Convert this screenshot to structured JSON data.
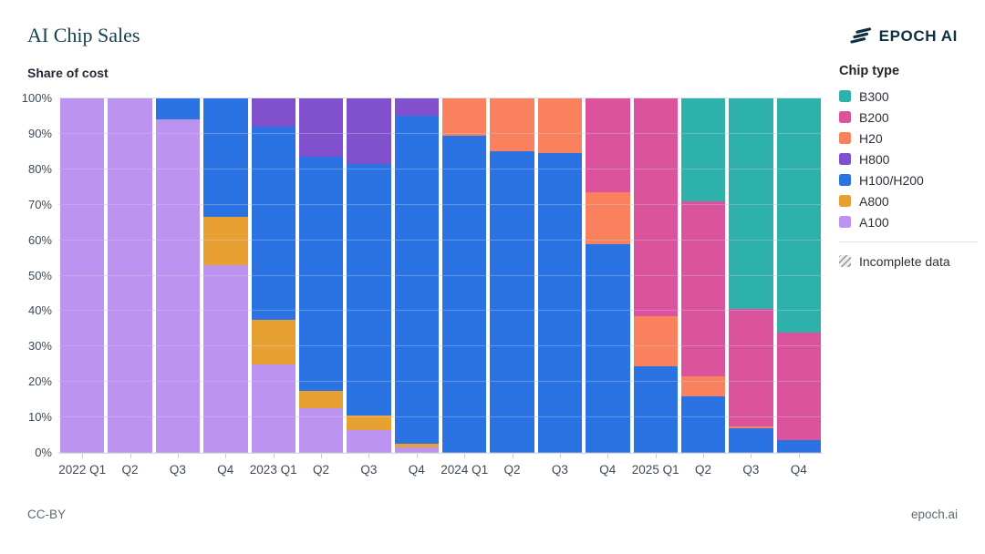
{
  "header": {
    "title": "AI Chip Sales",
    "brand": "EPOCH AI"
  },
  "footer": {
    "license": "CC-BY",
    "site": "epoch.ai"
  },
  "chart_data": {
    "type": "bar",
    "stacked": true,
    "title": "AI Chip Sales",
    "ylabel": "Share of cost",
    "ylim": [
      0,
      100
    ],
    "yticks": [
      0,
      10,
      20,
      30,
      40,
      50,
      60,
      70,
      80,
      90,
      100
    ],
    "ytick_format": "percent",
    "grid": true,
    "legend_title": "Chip type",
    "legend_position": "right",
    "incomplete_label": "Incomplete data",
    "incomplete_categories": [
      "2025 Q4"
    ],
    "categories": [
      "2022 Q1",
      "Q2",
      "Q3",
      "Q4",
      "2023 Q1",
      "Q2",
      "Q3",
      "Q4",
      "2024 Q1",
      "Q2",
      "Q3",
      "Q4",
      "2025 Q1",
      "Q2",
      "Q3",
      "Q4"
    ],
    "series": [
      {
        "name": "A100",
        "color": "#BD93F1",
        "values": [
          100,
          100,
          94,
          53,
          25,
          12.5,
          6.5,
          1.5,
          0,
          0,
          0,
          0,
          0,
          0,
          0,
          0
        ]
      },
      {
        "name": "A800",
        "color": "#E8A032",
        "values": [
          0,
          0,
          0,
          13.5,
          12.5,
          5,
          4,
          1,
          0,
          0,
          0,
          0,
          0,
          0,
          0,
          0
        ]
      },
      {
        "name": "H100/H200",
        "color": "#2B73E3",
        "values": [
          0,
          0,
          6,
          33.5,
          54.5,
          66,
          71,
          92.5,
          89.5,
          85,
          84.5,
          59,
          24.5,
          16,
          7,
          3.5
        ]
      },
      {
        "name": "H800",
        "color": "#8150CC",
        "values": [
          0,
          0,
          0,
          0,
          8,
          16.5,
          18.5,
          5,
          0,
          0,
          0,
          0,
          0,
          0,
          0,
          0
        ]
      },
      {
        "name": "H20",
        "color": "#F9815D",
        "values": [
          0,
          0,
          0,
          0,
          0,
          0,
          0,
          0,
          10.5,
          15,
          15.5,
          14.5,
          14,
          5.5,
          0.5,
          0
        ]
      },
      {
        "name": "B200",
        "color": "#DB539C",
        "values": [
          0,
          0,
          0,
          0,
          0,
          0,
          0,
          0,
          0,
          0,
          0,
          26.5,
          61.5,
          49.5,
          33,
          30.5
        ]
      },
      {
        "name": "B300",
        "color": "#2FB1AB",
        "values": [
          0,
          0,
          0,
          0,
          0,
          0,
          0,
          0,
          0,
          0,
          0,
          0,
          0,
          29,
          59.5,
          66
        ]
      }
    ]
  }
}
